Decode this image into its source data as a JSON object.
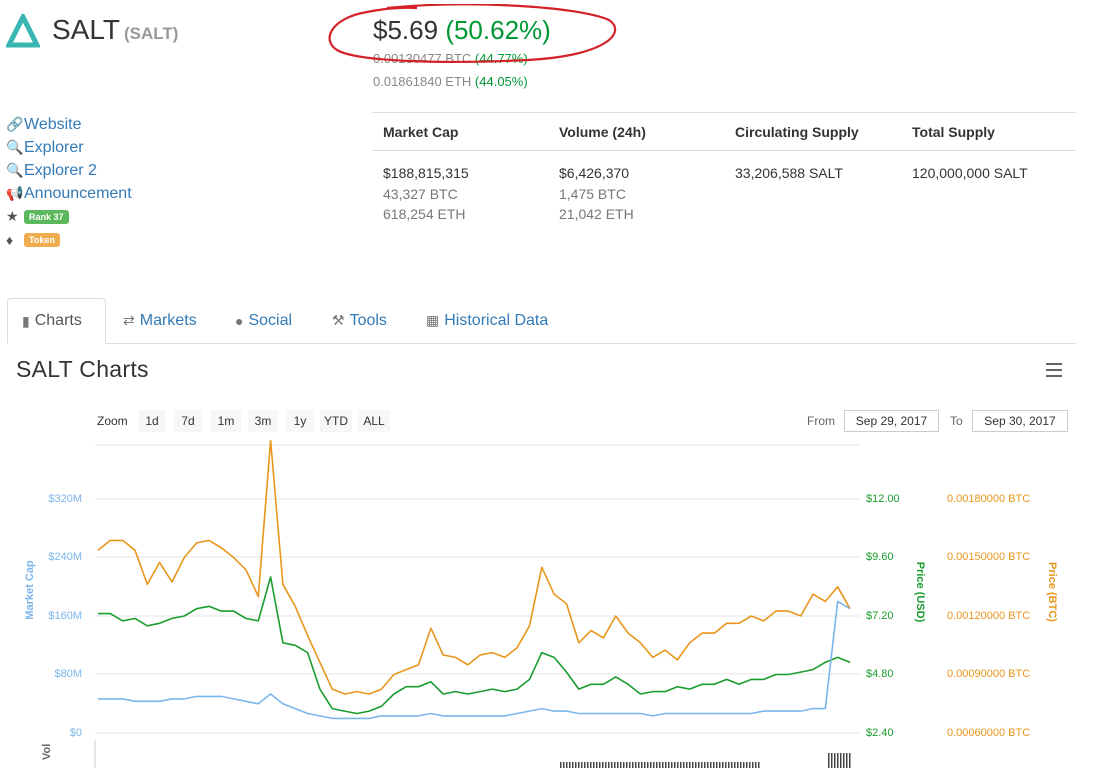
{
  "coin": {
    "name": "SALT",
    "symbol": "(SALT)"
  },
  "price": {
    "usd": "$5.69",
    "usd_change": "(50.62%)",
    "btc": "0.00130477 BTC",
    "btc_change": "(44.77%)",
    "eth": "0.01861840 ETH",
    "eth_change": "(44.05%)"
  },
  "links": {
    "website": "Website",
    "explorer1": "Explorer",
    "explorer2": "Explorer 2",
    "announcement": "Announcement",
    "rank": "Rank 37",
    "type": "Token"
  },
  "stats": {
    "headers": [
      "Market Cap",
      "Volume (24h)",
      "Circulating Supply",
      "Total Supply"
    ],
    "market_cap": [
      "$188,815,315",
      "43,327 BTC",
      "618,254 ETH"
    ],
    "volume": [
      "$6,426,370",
      "1,475 BTC",
      "21,042 ETH"
    ],
    "circulating": "33,206,588 SALT",
    "total": "120,000,000 SALT"
  },
  "tabs": [
    "Charts",
    "Markets",
    "Social",
    "Tools",
    "Historical Data"
  ],
  "chart_section": {
    "title": "SALT Charts",
    "zoom_label": "Zoom",
    "zoom_buttons": [
      "1d",
      "7d",
      "1m",
      "3m",
      "1y",
      "YTD",
      "ALL"
    ],
    "from_label": "From",
    "from_value": "Sep 29, 2017",
    "to_label": "To",
    "to_value": "Sep 30, 2017"
  },
  "colors": {
    "market_cap": "#7cb5ec",
    "price_usd": "#1a9c2e",
    "price_btc": "#e8961c",
    "accent_link": "#337ab7",
    "positive": "#009933"
  },
  "chart_data": {
    "type": "line",
    "axes": {
      "left": {
        "label": "Market Cap",
        "ticks": [
          "$0",
          "$80M",
          "$160M",
          "$240M",
          "$320M"
        ]
      },
      "right1": {
        "label": "Price (USD)",
        "ticks": [
          "$2.40",
          "$4.80",
          "$7.20",
          "$9.60",
          "$12.00"
        ]
      },
      "right2": {
        "label": "Price (BTC)",
        "ticks": [
          "0.00060000 BTC",
          "0.00090000 BTC",
          "0.00120000 BTC",
          "0.00150000 BTC",
          "0.00180000 BTC"
        ]
      },
      "bottom_label": "Vol"
    },
    "usd_range": [
      2.4,
      12.8
    ],
    "series": [
      {
        "name": "Price (BTC)",
        "color": "#e8961c",
        "values": [
          9.9,
          10.3,
          10.3,
          9.9,
          8.5,
          9.4,
          8.6,
          9.6,
          10.2,
          10.3,
          10.0,
          9.6,
          9.1,
          8.0,
          14.4,
          8.5,
          7.6,
          6.4,
          5.3,
          4.2,
          4.0,
          4.1,
          4.0,
          4.2,
          4.8,
          5.0,
          5.2,
          6.7,
          5.6,
          5.5,
          5.2,
          5.6,
          5.7,
          5.5,
          5.9,
          6.8,
          9.2,
          8.1,
          7.7,
          6.1,
          6.6,
          6.3,
          7.2,
          6.5,
          6.1,
          5.5,
          5.8,
          5.4,
          6.1,
          6.5,
          6.5,
          6.9,
          6.9,
          7.2,
          7.0,
          7.4,
          7.4,
          7.2,
          8.1,
          7.8,
          8.4,
          7.5
        ]
      },
      {
        "name": "Price (USD)",
        "color": "#1a9c2e",
        "values": [
          7.3,
          7.3,
          7.0,
          7.1,
          6.8,
          6.9,
          7.1,
          7.2,
          7.5,
          7.6,
          7.4,
          7.4,
          7.1,
          7.0,
          8.8,
          6.1,
          6.0,
          5.7,
          4.2,
          3.4,
          3.3,
          3.2,
          3.3,
          3.5,
          4.0,
          4.3,
          4.3,
          4.5,
          4.0,
          4.1,
          4.0,
          4.1,
          4.2,
          4.1,
          4.2,
          4.6,
          5.7,
          5.5,
          4.9,
          4.2,
          4.4,
          4.4,
          4.7,
          4.4,
          4.0,
          4.1,
          4.1,
          4.3,
          4.2,
          4.4,
          4.4,
          4.6,
          4.4,
          4.6,
          4.6,
          4.8,
          4.8,
          4.9,
          5.0,
          5.3,
          5.5,
          5.3
        ]
      },
      {
        "name": "Market Cap",
        "color": "#7cb5ec",
        "values": [
          3.8,
          3.8,
          3.8,
          3.7,
          3.7,
          3.7,
          3.8,
          3.8,
          3.9,
          3.9,
          3.9,
          3.8,
          3.7,
          3.6,
          4.0,
          3.6,
          3.4,
          3.2,
          3.1,
          3.0,
          3.0,
          3.0,
          3.0,
          3.1,
          3.1,
          3.1,
          3.1,
          3.2,
          3.1,
          3.1,
          3.1,
          3.1,
          3.1,
          3.1,
          3.2,
          3.3,
          3.4,
          3.3,
          3.3,
          3.2,
          3.2,
          3.2,
          3.2,
          3.2,
          3.2,
          3.1,
          3.2,
          3.2,
          3.2,
          3.2,
          3.2,
          3.2,
          3.2,
          3.2,
          3.3,
          3.3,
          3.3,
          3.3,
          3.4,
          3.4,
          7.8,
          7.5
        ]
      }
    ]
  }
}
